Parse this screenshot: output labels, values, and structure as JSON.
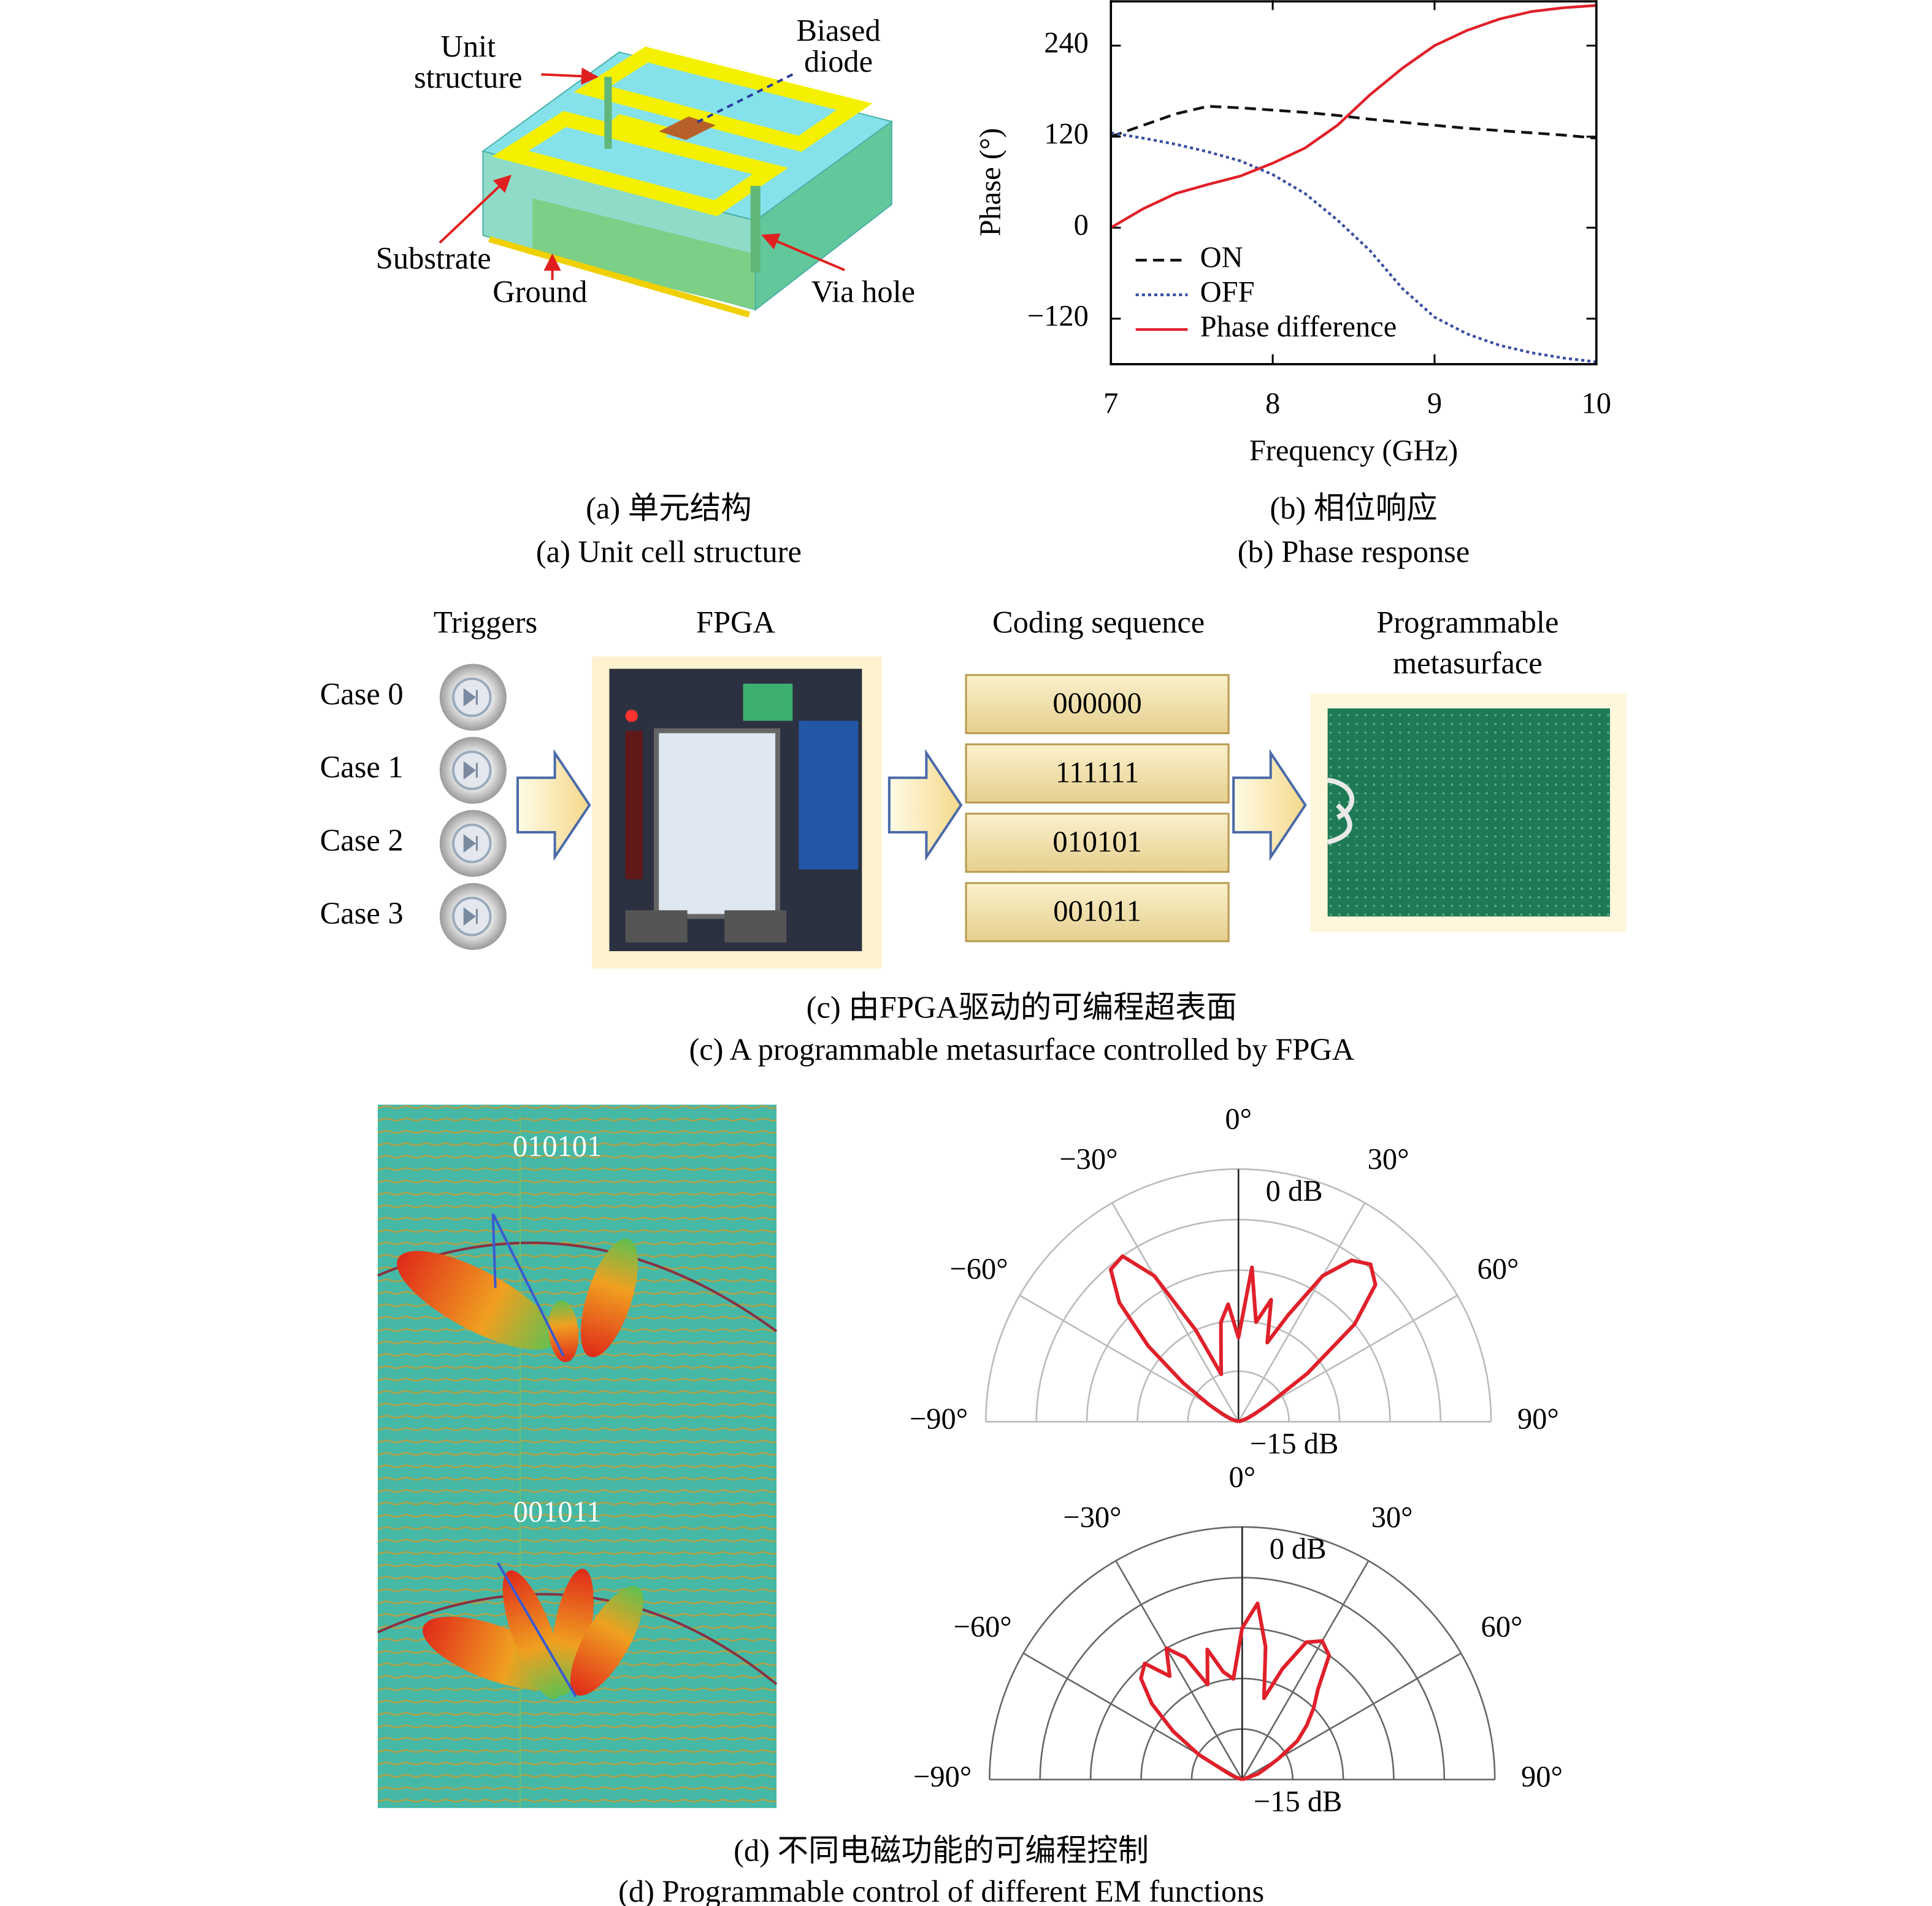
{
  "panel_a": {
    "unit_structure": [
      "Unit",
      "structure"
    ],
    "biased_diode": [
      "Biased",
      "diode"
    ],
    "substrate": "Substrate",
    "ground": "Ground",
    "via_hole": "Via hole",
    "caption": [
      "(a) 单元结构",
      "(a) Unit cell structure"
    ]
  },
  "panel_b": {
    "caption": [
      "(b) 相位响应",
      "(b) Phase response"
    ]
  },
  "panel_c": {
    "headers": [
      "Triggers",
      "FPGA",
      "Coding sequence"
    ],
    "metasurface_header": [
      "Programmable",
      "metasurface"
    ],
    "cases": [
      "Case 0",
      "Case 1",
      "Case 2",
      "Case 3"
    ],
    "codes": [
      "000000",
      "111111",
      "010101",
      "001011"
    ],
    "caption": [
      "(c) 由FPGA驱动的可编程超表面",
      "(c) A programmable metasurface controlled by FPGA"
    ]
  },
  "panel_d": {
    "patterns": [
      "010101",
      "001011"
    ],
    "caption": [
      "(d) 不同电磁功能的可编程控制",
      "(d) Programmable control of different EM functions"
    ]
  },
  "chart_data": [
    {
      "type": "line",
      "xlabel": "Frequency (GHz)",
      "ylabel": "Phase (°)",
      "x": [
        7,
        7.2,
        7.4,
        7.6,
        7.8,
        8,
        8.2,
        8.4,
        8.6,
        8.8,
        9,
        9.2,
        9.4,
        9.6,
        9.8,
        10
      ],
      "xlim": [
        7,
        10
      ],
      "xticks": [
        7,
        8,
        9,
        10
      ],
      "ylim": [
        -180,
        300
      ],
      "yticks": [
        {
          "value": -120,
          "label": "−120"
        },
        0,
        120,
        240
      ],
      "legend": "lower left",
      "series": [
        {
          "name": "ON",
          "color": "#111111",
          "style": "dashed",
          "values": [
            120,
            135,
            150,
            160,
            158,
            155,
            152,
            148,
            143,
            139,
            135,
            131,
            128,
            125,
            122,
            118
          ]
        },
        {
          "name": "OFF",
          "color": "#3a4fa0",
          "style": "dotted",
          "values": [
            125,
            118,
            110,
            100,
            88,
            70,
            45,
            10,
            -30,
            -80,
            -118,
            -140,
            -155,
            -165,
            -172,
            -177
          ]
        },
        {
          "name": "Phase difference",
          "color": "#e0202a",
          "style": "solid",
          "values": [
            0,
            25,
            45,
            57,
            68,
            85,
            105,
            135,
            175,
            210,
            240,
            260,
            275,
            285,
            290,
            293
          ]
        }
      ]
    },
    {
      "type": "polar",
      "grid_color": "#bbbbbb",
      "theta": [
        -90,
        -85,
        -80,
        -75,
        -70,
        -65,
        -60,
        -55,
        -50,
        -45,
        -40,
        -35,
        -30,
        -25,
        -20,
        -15,
        -10,
        -5,
        0,
        5,
        10,
        15,
        20,
        25,
        30,
        35,
        40,
        45,
        50,
        55,
        60,
        65,
        70,
        75,
        80,
        85,
        90
      ],
      "thetaticks": [
        {
          "value": -90,
          "label": "−90°"
        },
        {
          "value": -60,
          "label": "−60°"
        },
        {
          "value": -30,
          "label": "−30°"
        },
        {
          "value": 0,
          "label": "0°"
        },
        {
          "value": 30,
          "label": "30°"
        },
        {
          "value": 60,
          "label": "60°"
        },
        {
          "value": 90,
          "label": "90°"
        }
      ],
      "rlim": [
        -15,
        0
      ],
      "rticks": [
        {
          "value": -15,
          "label": "−15 dB"
        },
        {
          "value": 0,
          "label": "0 dB"
        }
      ],
      "rgrid": [
        -12,
        -9,
        -6,
        -3
      ],
      "series": [
        {
          "color": "#e0202a",
          "values": [
            -15,
            -15,
            -15,
            -15,
            -14.5,
            -14,
            -13,
            -11,
            -8,
            -5,
            -3.2,
            -3,
            -5,
            -9,
            -12,
            -11,
            -9,
            -8,
            -10,
            -5.8,
            -9,
            -7.5,
            -10,
            -8,
            -5,
            -3.3,
            -2.8,
            -3.5,
            -6,
            -10,
            -13,
            -14,
            -14.5,
            -15,
            -15,
            -15,
            -15
          ]
        }
      ]
    },
    {
      "type": "polar",
      "grid_color": "#666666",
      "theta": [
        -90,
        -85,
        -80,
        -75,
        -70,
        -65,
        -60,
        -55,
        -50,
        -45,
        -40,
        -35,
        -30,
        -25,
        -20,
        -15,
        -10,
        -5,
        0,
        5,
        10,
        15,
        20,
        25,
        30,
        35,
        40,
        45,
        50,
        55,
        60,
        65,
        70,
        75,
        80,
        85,
        90
      ],
      "thetaticks": [
        {
          "value": -90,
          "label": "−90°"
        },
        {
          "value": -60,
          "label": "−60°"
        },
        {
          "value": -30,
          "label": "−30°"
        },
        {
          "value": 0,
          "label": "0°"
        },
        {
          "value": 30,
          "label": "30°"
        },
        {
          "value": 60,
          "label": "60°"
        },
        {
          "value": 90,
          "label": "90°"
        }
      ],
      "rlim": [
        -15,
        0
      ],
      "rticks": [
        {
          "value": -15,
          "label": "−15 dB"
        },
        {
          "value": 0,
          "label": "0 dB"
        }
      ],
      "rgrid": [
        -12,
        -9,
        -6,
        -3
      ],
      "series": [
        {
          "color": "#e0202a",
          "values": [
            -15,
            -15,
            -15,
            -15,
            -14.5,
            -14,
            -12,
            -10,
            -8,
            -6.5,
            -6,
            -7.5,
            -6,
            -7,
            -9,
            -7,
            -8.5,
            -9,
            -6,
            -4.5,
            -7,
            -10,
            -8,
            -6,
            -5.5,
            -6,
            -8,
            -9,
            -10,
            -11,
            -12.5,
            -13.5,
            -14,
            -15,
            -15,
            -15,
            -15
          ]
        }
      ]
    }
  ]
}
